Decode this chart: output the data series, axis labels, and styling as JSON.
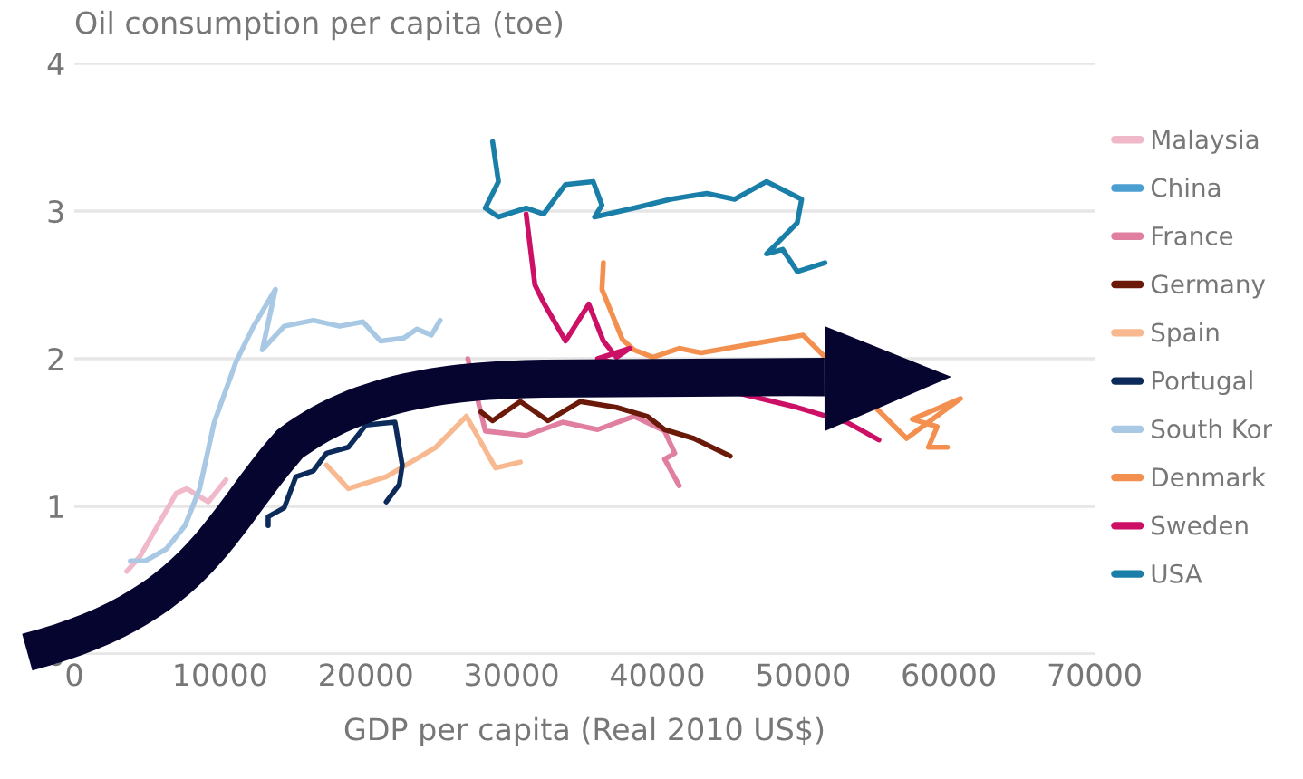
{
  "chart_data": {
    "type": "line",
    "ylabel": "Oil consumption per capita (toe)",
    "xlabel": "GDP per capita (Real 2010 US$)",
    "xlim": [
      0,
      70000
    ],
    "xticks": [
      0,
      10000,
      20000,
      30000,
      40000,
      50000,
      60000,
      70000
    ],
    "ylim": [
      0,
      4
    ],
    "yticks": [
      0,
      1,
      2,
      3,
      4
    ],
    "grid": "y",
    "legend": "right",
    "marker": "none",
    "line_style": "solid",
    "series": [
      {
        "name": "Malaysia",
        "color": "#f0b8c8",
        "x": [
          3600,
          4500,
          7000,
          7700,
          9200,
          10400
        ],
        "values": [
          0.56,
          0.66,
          1.09,
          1.12,
          1.03,
          1.18
        ]
      },
      {
        "name": "China",
        "color": "#4a9fd0"
      },
      {
        "name": "France",
        "color": "#e07fa0",
        "x": [
          27000,
          28200,
          31000,
          33500,
          35900,
          38400,
          40500,
          41200,
          40500,
          41500
        ],
        "values": [
          2.0,
          1.51,
          1.48,
          1.57,
          1.52,
          1.61,
          1.51,
          1.36,
          1.32,
          1.14
        ]
      },
      {
        "name": "Germany",
        "color": "#6b1a0a",
        "x": [
          27900,
          28700,
          30600,
          32500,
          34700,
          37200,
          39300,
          40500,
          42500,
          45000
        ],
        "values": [
          1.64,
          1.58,
          1.71,
          1.58,
          1.71,
          1.67,
          1.61,
          1.52,
          1.46,
          1.34
        ]
      },
      {
        "name": "Spain",
        "color": "#f8b890",
        "x": [
          17300,
          18800,
          21400,
          24800,
          26900,
          28900,
          30600
        ],
        "values": [
          1.28,
          1.12,
          1.2,
          1.4,
          1.61,
          1.26,
          1.3
        ]
      },
      {
        "name": "Portugal",
        "color": "#0c2a5a",
        "x": [
          13300,
          13300,
          14400,
          15200,
          16400,
          17300,
          18800,
          20000,
          20800,
          22000,
          22500,
          22300,
          21400
        ],
        "values": [
          0.87,
          0.93,
          0.99,
          1.2,
          1.24,
          1.36,
          1.4,
          1.55,
          null,
          1.57,
          1.28,
          1.15,
          1.03
        ]
      },
      {
        "name": "South Kor",
        "color": "#a8c8e4",
        "x": [
          3850,
          4850,
          6300,
          7600,
          8600,
          9600,
          11100,
          12300,
          13800,
          12900,
          14400,
          16400,
          18200,
          19800,
          21000,
          22600,
          23500,
          24500,
          25100
        ],
        "values": [
          0.63,
          0.63,
          0.71,
          0.87,
          1.12,
          1.57,
          1.98,
          2.22,
          2.47,
          2.06,
          2.22,
          2.26,
          2.22,
          2.25,
          2.12,
          2.14,
          2.2,
          2.16,
          2.26
        ]
      },
      {
        "name": "Denmark",
        "color": "#f39050",
        "x": [
          36300,
          36200,
          37600,
          38400,
          39700,
          41500,
          43000,
          44700,
          48000,
          50000,
          52100,
          53700,
          57100,
          60800,
          57500,
          59200,
          58600,
          59900
        ],
        "values": [
          2.65,
          2.47,
          2.13,
          2.06,
          2.01,
          2.07,
          2.04,
          null,
          null,
          2.16,
          null,
          null,
          1.46,
          1.73,
          1.59,
          1.54,
          1.4,
          1.4
        ]
      },
      {
        "name": "Sweden",
        "color": "#cc1066",
        "x": [
          31000,
          31600,
          32200,
          33700,
          35300,
          36300,
          37200,
          38100,
          35900,
          47100,
          49600,
          51900,
          53000,
          55200
        ],
        "values": [
          2.98,
          2.5,
          2.38,
          2.12,
          2.37,
          2.12,
          2.01,
          2.07,
          2.0,
          null,
          1.67,
          null,
          1.57,
          1.45
        ]
      },
      {
        "name": "USA",
        "color": "#1a7fa8",
        "x": [
          28700,
          29100,
          28200,
          29100,
          31000,
          32200,
          33700,
          35600,
          36200,
          35700,
          38400,
          40900,
          43400,
          45300,
          47500,
          49900,
          49600,
          48400,
          47500,
          48600,
          49600,
          51500
        ],
        "values": [
          3.47,
          3.2,
          3.02,
          2.96,
          3.02,
          2.98,
          3.18,
          3.2,
          3.04,
          2.96,
          3.02,
          3.08,
          3.12,
          3.08,
          3.2,
          3.08,
          2.92,
          2.8,
          2.71,
          2.74,
          2.59,
          2.65
        ]
      }
    ]
  }
}
